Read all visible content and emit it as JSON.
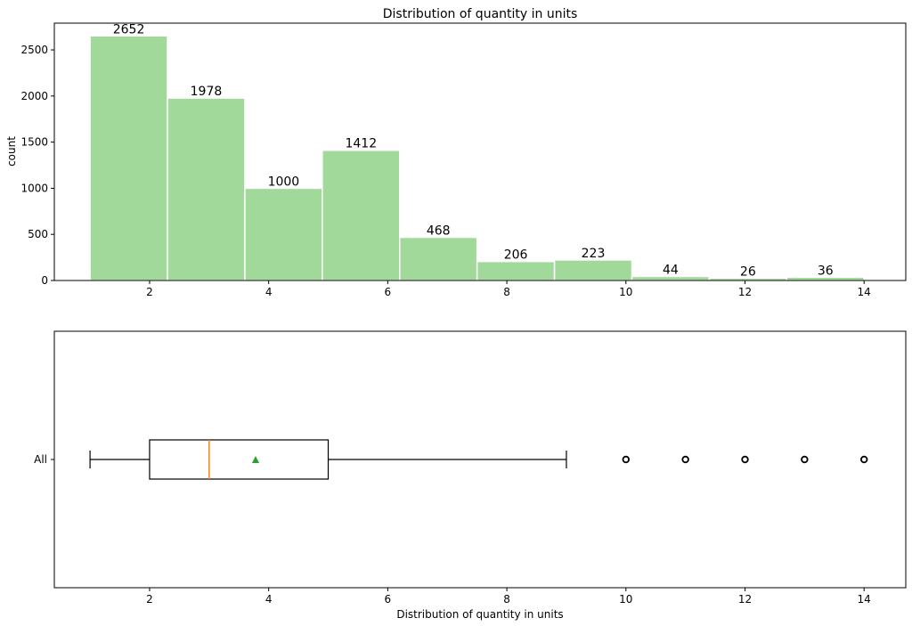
{
  "chart_data": [
    {
      "type": "bar",
      "subtype": "histogram",
      "title": "Distribution of quantity in units",
      "xlabel": "",
      "ylabel": "count",
      "bin_edges": [
        1.0,
        2.3,
        3.6,
        4.9,
        6.2,
        7.5,
        8.8,
        10.1,
        11.4,
        12.7,
        14.0
      ],
      "values": [
        2652,
        1978,
        1000,
        1412,
        468,
        206,
        223,
        44,
        26,
        36
      ],
      "xlim": [
        0.4,
        14.7
      ],
      "ylim": [
        0,
        2790
      ],
      "xticks": [
        2,
        4,
        6,
        8,
        10,
        12,
        14
      ],
      "yticks": [
        0,
        500,
        1000,
        1500,
        2000,
        2500
      ],
      "bar_color": "#a1d99b",
      "edge_color": "#ffffff",
      "grid": false
    },
    {
      "type": "box",
      "title": "",
      "xlabel": "Distribution of quantity in units",
      "ylabel": "",
      "categories": [
        "All"
      ],
      "box": {
        "whisker_low": 1,
        "q1": 2,
        "median": 3,
        "q3": 5,
        "whisker_high": 9,
        "mean": 3.78,
        "outliers": [
          10,
          11,
          12,
          13,
          14
        ]
      },
      "xlim": [
        0.4,
        14.7
      ],
      "xticks": [
        2,
        4,
        6,
        8,
        10,
        12,
        14
      ],
      "median_color": "#ff7f0e",
      "mean_color": "#2ca02c",
      "grid": false
    }
  ]
}
